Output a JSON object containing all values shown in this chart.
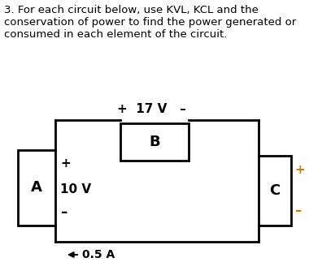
{
  "title_text": "3. For each circuit below, use KVL, KCL and the\nconservation of power to find the power generated or\nconsumed in each element of the circuit.",
  "background_color": "#ffffff",
  "line_color": "#000000",
  "text_color": "#000000",
  "font_size_title": 9.5,
  "element_A": "A",
  "element_B": "B",
  "element_C": "C",
  "voltage_17_label": "+  17 V   –",
  "voltage_10_label": "10 V",
  "plus_sign": "+",
  "minus_sign": "–",
  "current_label": "0.5 A"
}
